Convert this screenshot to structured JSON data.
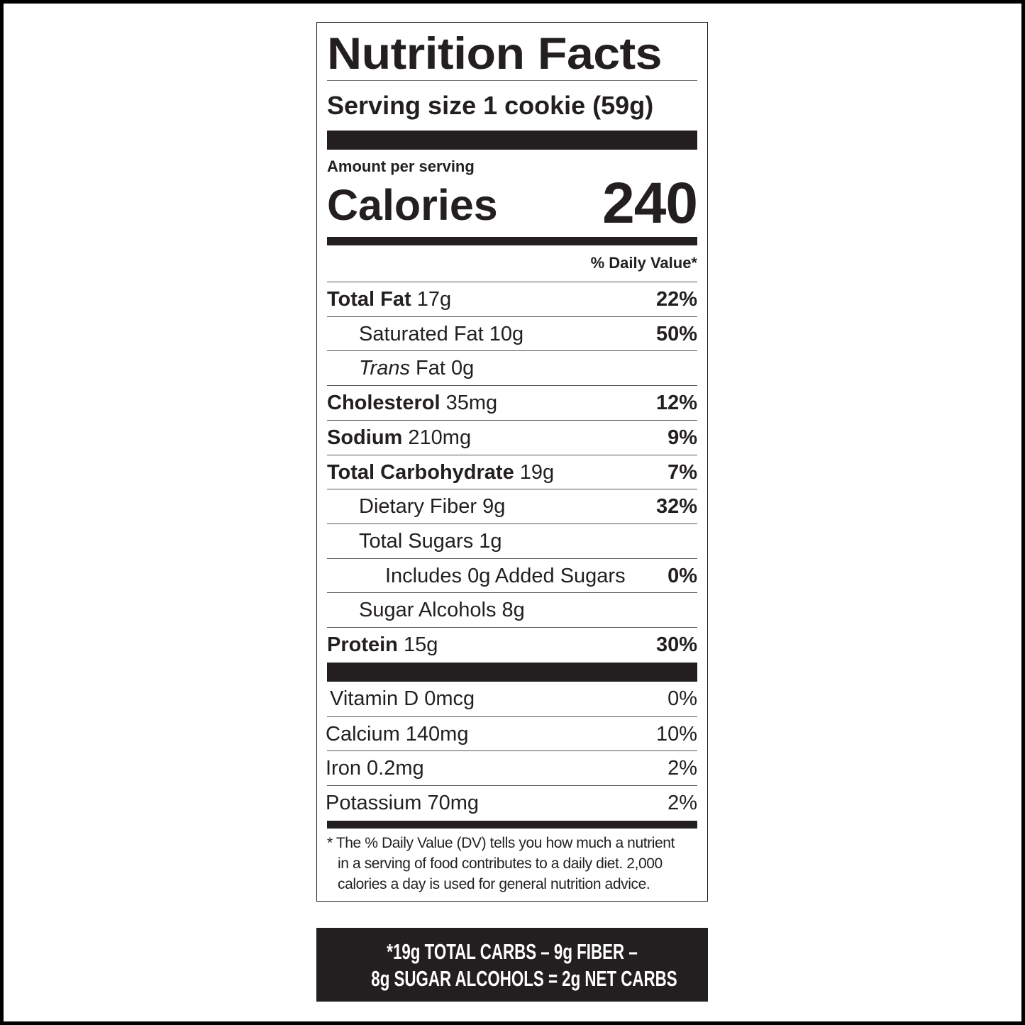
{
  "title": "Nutrition Facts",
  "serving_size": "Serving size 1 cookie (59g)",
  "amount_per_serving": "Amount per serving",
  "calories_label": "Calories",
  "calories_value": "240",
  "daily_value_header": "% Daily Value*",
  "nutrients": [
    {
      "name": "Total Fat",
      "amount": "17g",
      "dv": "22%",
      "bold": true,
      "indent": 0
    },
    {
      "name": "Saturated Fat",
      "amount": "10g",
      "dv": "50%",
      "bold": false,
      "indent": 1
    },
    {
      "name": "Trans",
      "name_suffix": "Fat",
      "amount": "0g",
      "dv": "",
      "bold": false,
      "indent": 1,
      "italic_name": true
    },
    {
      "name": "Cholesterol",
      "amount": "35mg",
      "dv": "12%",
      "bold": true,
      "indent": 0
    },
    {
      "name": "Sodium",
      "amount": "210mg",
      "dv": "9%",
      "bold": true,
      "indent": 0
    },
    {
      "name": "Total Carbohydrate",
      "amount": "19g",
      "dv": "7%",
      "bold": true,
      "indent": 0
    },
    {
      "name": "Dietary Fiber",
      "amount": "9g",
      "dv": "32%",
      "bold": false,
      "indent": 1
    },
    {
      "name": "Total Sugars",
      "amount": "1g",
      "dv": "",
      "bold": false,
      "indent": 1
    },
    {
      "name": "Includes 0g Added Sugars",
      "amount": "",
      "dv": "0%",
      "bold": false,
      "indent": 2
    },
    {
      "name": "Sugar Alcohols",
      "amount": "8g",
      "dv": "",
      "bold": false,
      "indent": 1
    },
    {
      "name": "Protein",
      "amount": "15g",
      "dv": "30%",
      "bold": true,
      "indent": 0
    }
  ],
  "vitamins": [
    {
      "name": "Vitamin D 0mcg",
      "dv": "0%"
    },
    {
      "name": "Calcium 140mg",
      "dv": "10%"
    },
    {
      "name": "Iron 0.2mg",
      "dv": "2%"
    },
    {
      "name": "Potassium 70mg",
      "dv": "2%"
    }
  ],
  "footnote": [
    "* The % Daily Value (DV) tells you how much a nutrient",
    "in a serving of food contributes to a daily diet. 2,000",
    "calories a day is used for general nutrition advice."
  ],
  "net_carbs": [
    "*19g TOTAL CARBS – 9g FIBER –",
    "8g SUGAR ALCOHOLS = 2g NET CARBS"
  ]
}
